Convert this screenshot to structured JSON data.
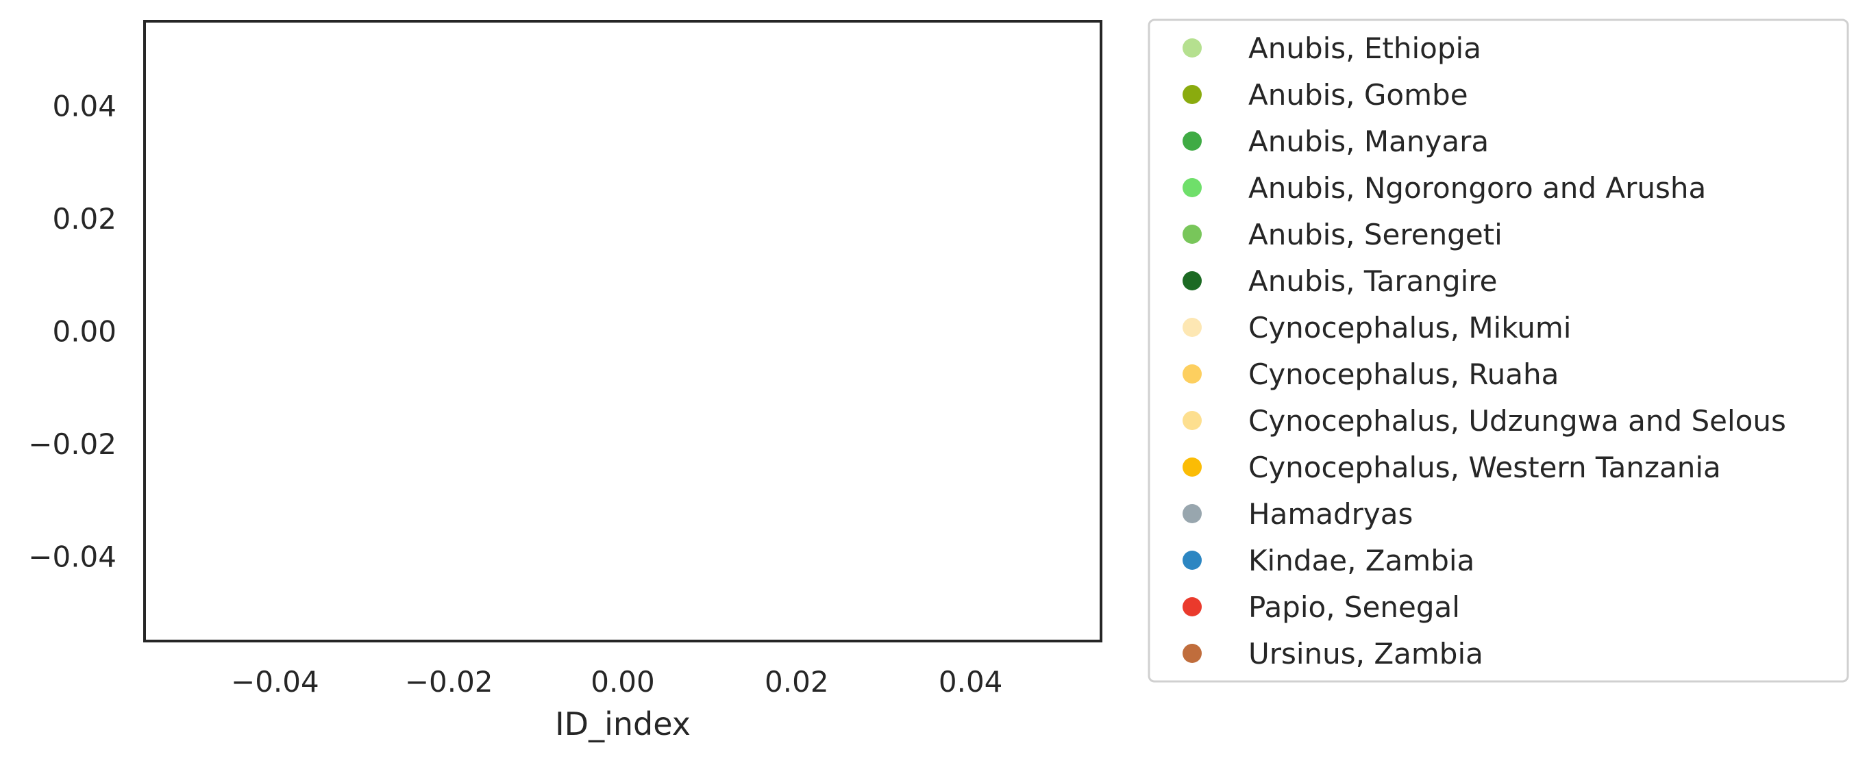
{
  "chart_data": {
    "type": "scatter",
    "title": "",
    "xlabel": "ID_index",
    "ylabel": "",
    "xlim": [
      -0.055,
      0.055
    ],
    "ylim": [
      -0.055,
      0.055
    ],
    "xticks": [
      -0.04,
      -0.02,
      0.0,
      0.02,
      0.04
    ],
    "xtick_labels": [
      "−0.04",
      "−0.02",
      "0.00",
      "0.02",
      "0.04"
    ],
    "yticks": [
      0.04,
      0.02,
      0.0,
      -0.02,
      -0.04
    ],
    "ytick_labels": [
      "0.04",
      "0.02",
      "0.00",
      "−0.02",
      "−0.04"
    ],
    "grid": false,
    "legend_position": "outside-right",
    "series": [
      {
        "name": "Anubis, Ethiopia",
        "color": "#b5e08f",
        "points": []
      },
      {
        "name": "Anubis, Gombe",
        "color": "#8aab0e",
        "points": []
      },
      {
        "name": "Anubis, Manyara",
        "color": "#3fab44",
        "points": []
      },
      {
        "name": "Anubis, Ngorongoro and Arusha",
        "color": "#6fdf6a",
        "points": []
      },
      {
        "name": "Anubis, Serengeti",
        "color": "#78c65a",
        "points": []
      },
      {
        "name": "Anubis, Tarangire",
        "color": "#1c6a23",
        "points": []
      },
      {
        "name": "Cynocephalus, Mikumi",
        "color": "#fde7b3",
        "points": []
      },
      {
        "name": "Cynocephalus, Ruaha",
        "color": "#fdcf5f",
        "points": []
      },
      {
        "name": "Cynocephalus, Udzungwa and Selous",
        "color": "#fddf8f",
        "points": []
      },
      {
        "name": "Cynocephalus, Western Tanzania",
        "color": "#fbbc05",
        "points": []
      },
      {
        "name": "Hamadryas",
        "color": "#98a6ae",
        "points": []
      },
      {
        "name": "Kindae, Zambia",
        "color": "#2c86c2",
        "points": []
      },
      {
        "name": "Papio, Senegal",
        "color": "#ea3a2c",
        "points": []
      },
      {
        "name": "Ursinus, Zambia",
        "color": "#c06d3c",
        "points": []
      }
    ]
  }
}
